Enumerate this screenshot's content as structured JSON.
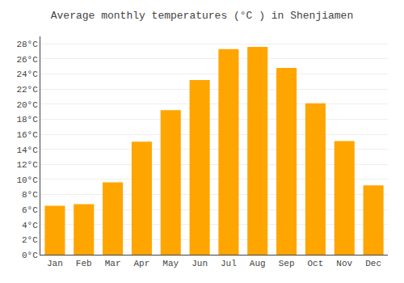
{
  "chart_data": {
    "type": "bar",
    "title": "Average monthly temperatures (°C ) in Shenjiamen",
    "categories": [
      "Jan",
      "Feb",
      "Mar",
      "Apr",
      "May",
      "Jun",
      "Jul",
      "Aug",
      "Sep",
      "Oct",
      "Nov",
      "Dec"
    ],
    "values": [
      6.5,
      6.7,
      9.6,
      15.0,
      19.2,
      23.2,
      27.3,
      27.6,
      24.8,
      20.1,
      15.1,
      9.2
    ],
    "color": "#FFA500",
    "ylim": [
      0,
      29
    ],
    "yticks": [
      {
        "value": 0,
        "label": "0°C"
      },
      {
        "value": 2,
        "label": "2°C"
      },
      {
        "value": 4,
        "label": "4°C"
      },
      {
        "value": 6,
        "label": "6°C"
      },
      {
        "value": 8,
        "label": "8°C"
      },
      {
        "value": 10,
        "label": "10°C"
      },
      {
        "value": 12,
        "label": "12°C"
      },
      {
        "value": 14,
        "label": "14°C"
      },
      {
        "value": 16,
        "label": "16°C"
      },
      {
        "value": 18,
        "label": "18°C"
      },
      {
        "value": 20,
        "label": "20°C"
      },
      {
        "value": 22,
        "label": "22°C"
      },
      {
        "value": 24,
        "label": "24°C"
      },
      {
        "value": 26,
        "label": "26°C"
      },
      {
        "value": 28,
        "label": "28°C"
      }
    ],
    "grid": true
  }
}
